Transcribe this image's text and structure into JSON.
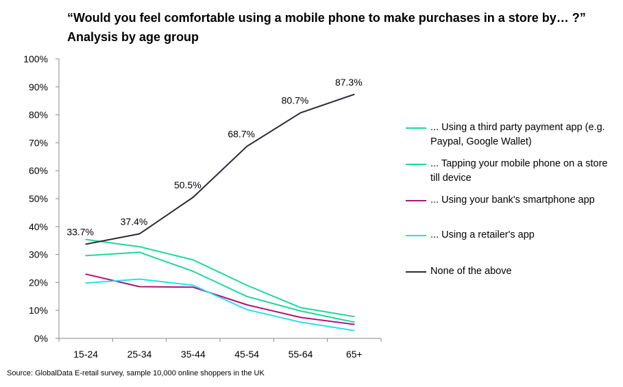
{
  "title": {
    "line1": "“Would you feel comfortable using a mobile phone to make purchases in a store by… ?”",
    "line2": "Analysis by age group"
  },
  "source": "Source: GlobalData E-retail survey, sample 10,000 online  shoppers in the UK",
  "chart_data": {
    "type": "line",
    "categories": [
      "15-24",
      "25-34",
      "35-44",
      "45-54",
      "55-64",
      "65+"
    ],
    "ylim": [
      0,
      100
    ],
    "yticks": [
      0,
      10,
      20,
      30,
      40,
      50,
      60,
      70,
      80,
      90,
      100
    ],
    "ytick_labels": [
      "0%",
      "10%",
      "20%",
      "30%",
      "40%",
      "50%",
      "60%",
      "70%",
      "80%",
      "90%",
      "100%"
    ],
    "grid": false,
    "legend_position": "right",
    "series": [
      {
        "name": "... Using a third party payment app (e.g. Paypal, Google Wallet)",
        "color": "#1fd69b",
        "values": [
          29.6,
          30.8,
          24.0,
          15.0,
          9.8,
          5.8
        ]
      },
      {
        "name": "... Tapping your mobile phone on a store till device",
        "color": "#1fd69b",
        "values": [
          35.4,
          32.8,
          28.1,
          19.0,
          11.0,
          7.8
        ]
      },
      {
        "name": "... Using your bank's smartphone app",
        "color": "#b0107a",
        "values": [
          23.0,
          18.5,
          18.3,
          12.0,
          7.5,
          5.0
        ]
      },
      {
        "name": "... Using a retailer's app",
        "color": "#22e0f0",
        "values": [
          19.8,
          21.2,
          19.0,
          10.3,
          5.8,
          2.8
        ]
      },
      {
        "name": "None of the above",
        "color": "#2b2733",
        "values": [
          33.7,
          37.4,
          50.5,
          68.7,
          80.7,
          87.3
        ],
        "data_labels": [
          "33.7%",
          "37.4%",
          "50.5%",
          "68.7%",
          "80.7%",
          "87.3%"
        ]
      }
    ]
  }
}
